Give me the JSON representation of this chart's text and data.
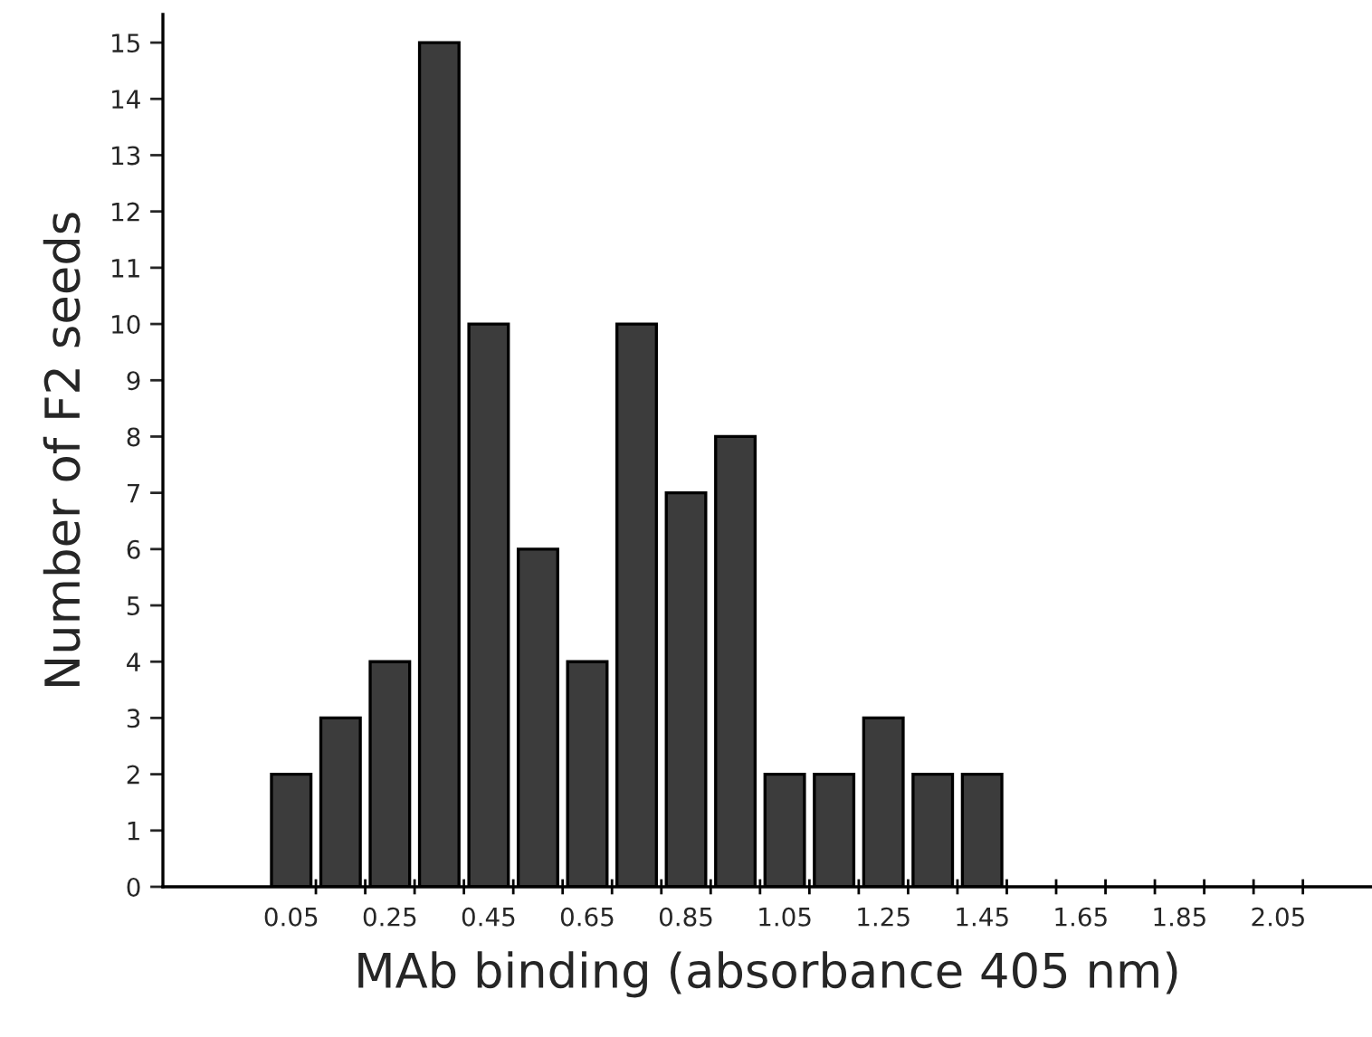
{
  "chart_data": {
    "type": "bar",
    "xlabel": "MAb binding (absorbance 405 nm)",
    "ylabel": "Number of F2 seeds",
    "x": [
      0.05,
      0.15,
      0.25,
      0.35,
      0.45,
      0.55,
      0.65,
      0.75,
      0.85,
      0.95,
      1.05,
      1.15,
      1.25,
      1.35,
      1.45
    ],
    "values": [
      2,
      3,
      4,
      15,
      10,
      6,
      4,
      10,
      7,
      8,
      2,
      2,
      3,
      2,
      2
    ],
    "color": "#3c3c3c",
    "xlim": [
      -0.21,
      2.24
    ],
    "xticks": [
      0.05,
      {
        "value": 0.1,
        "label": null
      },
      {
        "value": 0.2,
        "label": null
      },
      0.25,
      {
        "value": 0.3,
        "label": null
      },
      {
        "value": 0.4,
        "label": null
      },
      0.45,
      {
        "value": 0.5,
        "label": null
      },
      {
        "value": 0.6,
        "label": null
      },
      0.65,
      {
        "value": 0.7,
        "label": null
      },
      {
        "value": 0.8,
        "label": null
      },
      0.85,
      {
        "value": 0.9,
        "label": null
      },
      {
        "value": 1.0,
        "label": null
      },
      1.05,
      {
        "value": 1.1,
        "label": null
      },
      {
        "value": 1.2,
        "label": null
      },
      1.25,
      {
        "value": 1.3,
        "label": null
      },
      {
        "value": 1.4,
        "label": null
      },
      1.45,
      {
        "value": 1.5,
        "label": null
      },
      {
        "value": 1.6,
        "label": null
      },
      1.65,
      {
        "value": 1.7,
        "label": null
      },
      {
        "value": 1.8,
        "label": null
      },
      1.85,
      {
        "value": 1.9,
        "label": null
      },
      {
        "value": 2.0,
        "label": null
      },
      2.05,
      {
        "value": 2.1,
        "label": null
      }
    ],
    "ylim": [
      0,
      15.5
    ],
    "yticks": [
      0,
      1,
      2,
      3,
      4,
      5,
      6,
      7,
      8,
      9,
      10,
      11,
      12,
      13,
      14,
      15
    ],
    "grid": false,
    "legend": false
  }
}
